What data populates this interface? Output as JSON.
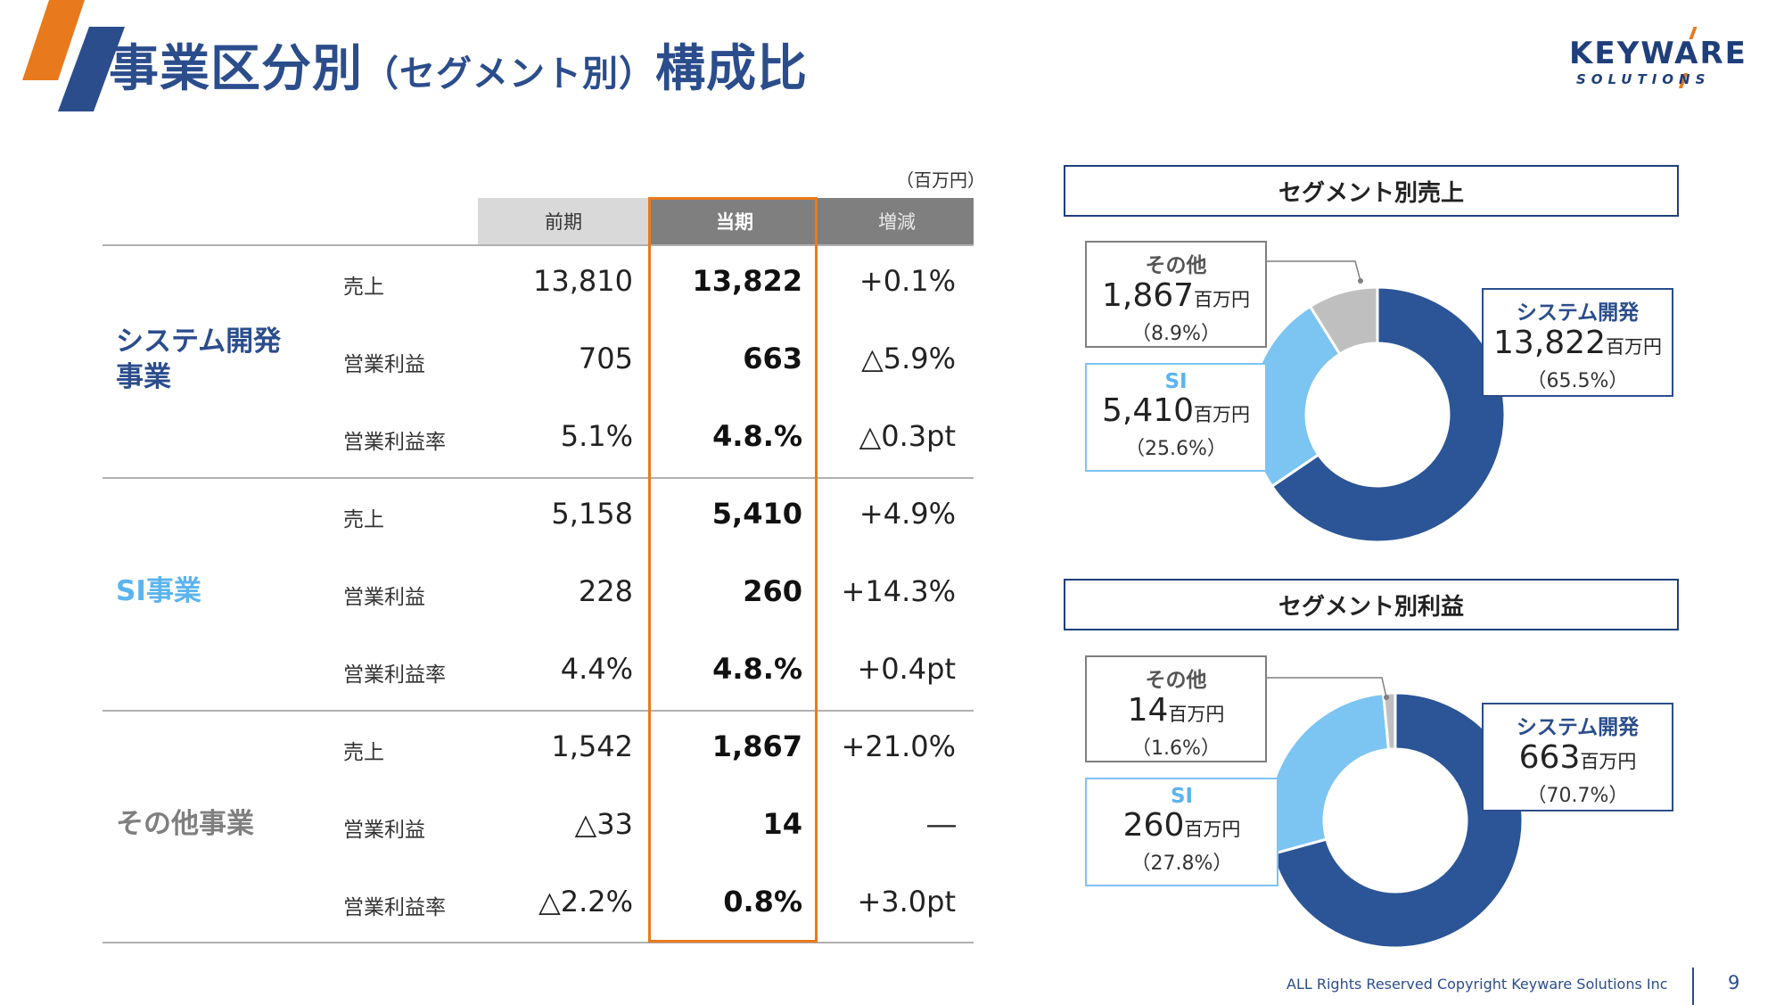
{
  "header": {
    "title_a": "事業区分別",
    "title_b": "（セグメント別）",
    "title_c": "構成比"
  },
  "logo": {
    "main": "KEYWARE",
    "sub": "SOLUTIONS"
  },
  "table": {
    "unit": "（百万円）",
    "columns": {
      "prev": "前期",
      "curr": "当期",
      "diff": "増減"
    },
    "segments": [
      {
        "name_l1": "システム開発",
        "name_l2": "事業",
        "rows": [
          {
            "metric": "売上",
            "prev": "13,810",
            "curr": "13,822",
            "diff": "+0.1%"
          },
          {
            "metric": "営業利益",
            "prev": "705",
            "curr": "663",
            "diff": "△5.9%"
          },
          {
            "metric": "営業利益率",
            "prev": "5.1%",
            "curr": "4.8.%",
            "diff": "△0.3pt"
          }
        ]
      },
      {
        "name_l1": "SI事業",
        "rows": [
          {
            "metric": "売上",
            "prev": "5,158",
            "curr": "5,410",
            "diff": "+4.9%"
          },
          {
            "metric": "営業利益",
            "prev": "228",
            "curr": "260",
            "diff": "+14.3%"
          },
          {
            "metric": "営業利益率",
            "prev": "4.4%",
            "curr": "4.8.%",
            "diff": "+0.4pt"
          }
        ]
      },
      {
        "name_l1": "その他事業",
        "rows": [
          {
            "metric": "売上",
            "prev": "1,542",
            "curr": "1,867",
            "diff": "+21.0%"
          },
          {
            "metric": "営業利益",
            "prev": "△33",
            "curr": "14",
            "diff": "―"
          },
          {
            "metric": "営業利益率",
            "prev": "△2.2%",
            "curr": "0.8%",
            "diff": "+3.0pt"
          }
        ]
      }
    ]
  },
  "chart_data": [
    {
      "type": "pie",
      "title": "セグメント別売上",
      "unit": "百万円",
      "slices": [
        {
          "name": "システム開発",
          "value": 13822,
          "value_label": "13,822",
          "pct_label": "（65.5%）",
          "share": 65.5,
          "color": "#2b5597"
        },
        {
          "name": "SI",
          "value": 5410,
          "value_label": "5,410",
          "pct_label": "（25.6%）",
          "share": 25.6,
          "color": "#7cc4f2"
        },
        {
          "name": "その他",
          "value": 1867,
          "value_label": "1,867",
          "pct_label": "（8.9%）",
          "share": 8.9,
          "color": "#bfbfbf"
        }
      ]
    },
    {
      "type": "pie",
      "title": "セグメント別利益",
      "unit": "百万円",
      "slices": [
        {
          "name": "システム開発",
          "value": 663,
          "value_label": "663",
          "pct_label": "（70.7%）",
          "share": 70.7,
          "color": "#2b5597"
        },
        {
          "name": "SI",
          "value": 260,
          "value_label": "260",
          "pct_label": "（27.8%）",
          "share": 27.8,
          "color": "#7cc4f2"
        },
        {
          "name": "その他",
          "value": 14,
          "value_label": "14",
          "pct_label": "（1.6%）",
          "share": 1.6,
          "color": "#bfbfbf"
        }
      ]
    }
  ],
  "colors": {
    "brand": "#2b4d8c",
    "accent": "#e87a1d",
    "si": "#5cb4ee",
    "other_seg": "#7f7f7f"
  },
  "footer": {
    "copyright": "ALL Rights Reserved Copyright Keyware Solutions Inc",
    "page": "9"
  }
}
